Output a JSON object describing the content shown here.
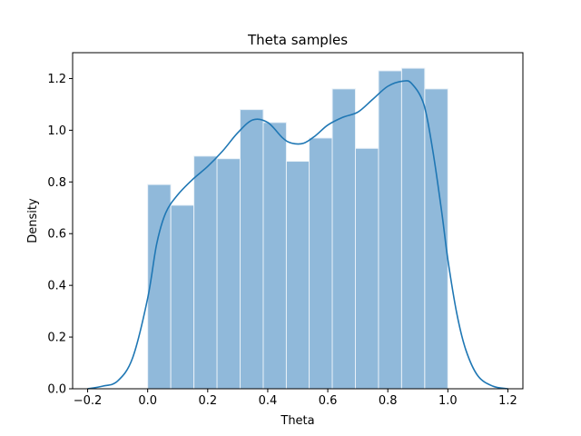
{
  "chart_data": {
    "type": "bar",
    "title": "Theta samples",
    "xlabel": "Theta",
    "ylabel": "Density",
    "xlim": [
      -0.25,
      1.25
    ],
    "ylim": [
      0,
      1.3
    ],
    "xticks": [
      -0.2,
      0.0,
      0.2,
      0.4,
      0.6,
      0.8,
      1.0,
      1.2
    ],
    "xtick_labels": [
      "−0.2",
      "0.0",
      "0.2",
      "0.4",
      "0.6",
      "0.8",
      "1.0",
      "1.2"
    ],
    "yticks": [
      0.0,
      0.2,
      0.4,
      0.6,
      0.8,
      1.0,
      1.2
    ],
    "ytick_labels": [
      "0.0",
      "0.2",
      "0.4",
      "0.6",
      "0.8",
      "1.0",
      "1.2"
    ],
    "grid": false,
    "series": [
      {
        "type": "histogram",
        "color": "#90b9da",
        "edge_color": "#e9f1f8",
        "bins": [
          {
            "x0": 0.0,
            "x1": 0.077,
            "density": 0.79
          },
          {
            "x0": 0.077,
            "x1": 0.154,
            "density": 0.71
          },
          {
            "x0": 0.154,
            "x1": 0.231,
            "density": 0.9
          },
          {
            "x0": 0.231,
            "x1": 0.308,
            "density": 0.89
          },
          {
            "x0": 0.308,
            "x1": 0.385,
            "density": 1.08
          },
          {
            "x0": 0.385,
            "x1": 0.462,
            "density": 1.03
          },
          {
            "x0": 0.462,
            "x1": 0.538,
            "density": 0.88
          },
          {
            "x0": 0.538,
            "x1": 0.615,
            "density": 0.97
          },
          {
            "x0": 0.615,
            "x1": 0.692,
            "density": 1.16
          },
          {
            "x0": 0.692,
            "x1": 0.769,
            "density": 0.93
          },
          {
            "x0": 0.769,
            "x1": 0.846,
            "density": 1.23
          },
          {
            "x0": 0.846,
            "x1": 0.923,
            "density": 1.24
          },
          {
            "x0": 0.923,
            "x1": 1.0,
            "density": 1.16
          }
        ]
      },
      {
        "type": "line",
        "color": "#1f77b4",
        "points": [
          [
            -0.2,
            0.0
          ],
          [
            -0.15,
            0.01
          ],
          [
            -0.1,
            0.03
          ],
          [
            -0.05,
            0.12
          ],
          [
            0.0,
            0.35
          ],
          [
            0.03,
            0.56
          ],
          [
            0.06,
            0.68
          ],
          [
            0.1,
            0.75
          ],
          [
            0.15,
            0.81
          ],
          [
            0.2,
            0.86
          ],
          [
            0.25,
            0.92
          ],
          [
            0.3,
            0.99
          ],
          [
            0.35,
            1.04
          ],
          [
            0.4,
            1.03
          ],
          [
            0.45,
            0.97
          ],
          [
            0.48,
            0.95
          ],
          [
            0.52,
            0.95
          ],
          [
            0.56,
            0.98
          ],
          [
            0.6,
            1.02
          ],
          [
            0.65,
            1.05
          ],
          [
            0.7,
            1.07
          ],
          [
            0.75,
            1.12
          ],
          [
            0.8,
            1.17
          ],
          [
            0.85,
            1.19
          ],
          [
            0.88,
            1.18
          ],
          [
            0.92,
            1.1
          ],
          [
            0.95,
            0.92
          ],
          [
            0.98,
            0.68
          ],
          [
            1.0,
            0.5
          ],
          [
            1.03,
            0.29
          ],
          [
            1.06,
            0.15
          ],
          [
            1.1,
            0.05
          ],
          [
            1.15,
            0.01
          ],
          [
            1.2,
            0.0
          ]
        ]
      }
    ]
  }
}
